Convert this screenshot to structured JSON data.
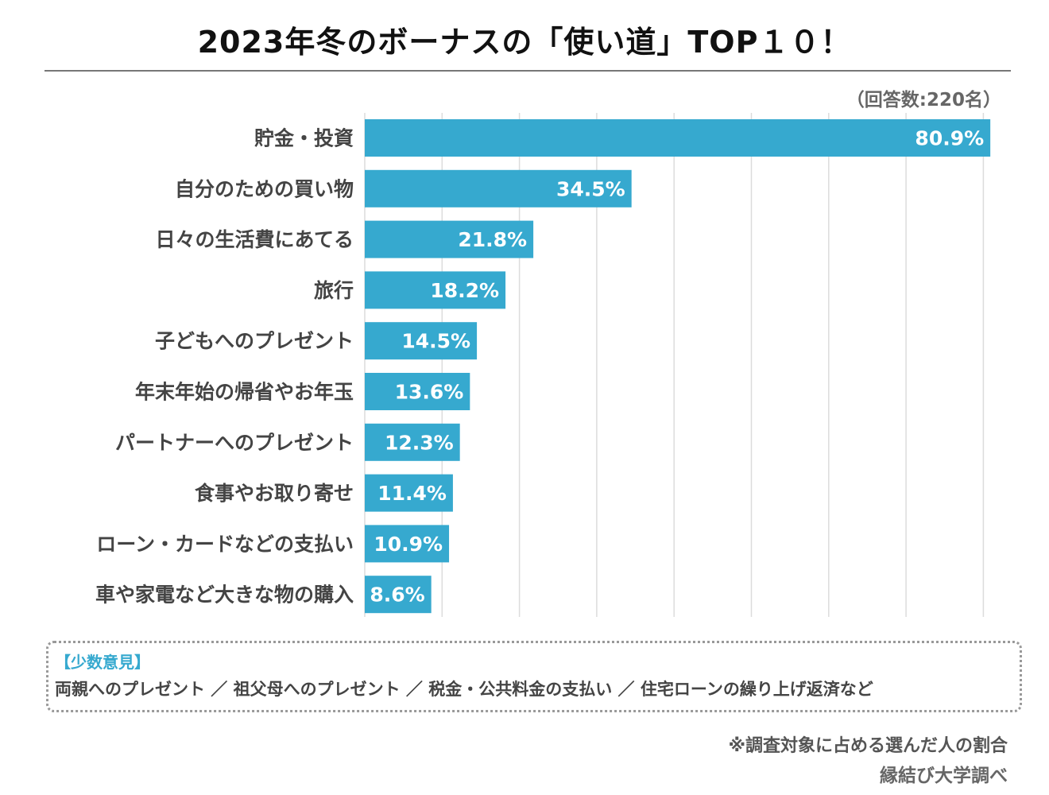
{
  "chart_data": {
    "type": "bar",
    "orientation": "horizontal",
    "title": "2023年冬のボーナスの「使い道」TOP１０！",
    "subtitle": "（回答数:220名）",
    "categories": [
      "貯金・投資",
      "自分のための買い物",
      "日々の生活費にあてる",
      "旅行",
      "子どもへのプレゼント",
      "年末年始の帰省やお年玉",
      "パートナーへのプレゼント",
      "食事やお取り寄せ",
      "ローン・カードなどの支払い",
      "車や家電など大きな物の購入"
    ],
    "values": [
      80.9,
      34.5,
      21.8,
      18.2,
      14.5,
      13.6,
      12.3,
      11.4,
      10.9,
      8.6
    ],
    "data_labels": [
      "80.9%",
      "34.5%",
      "21.8%",
      "18.2%",
      "14.5%",
      "13.6%",
      "12.3%",
      "11.4%",
      "10.9%",
      "8.6%"
    ],
    "xlim": [
      0,
      82
    ],
    "grid": true,
    "gridlines": [
      10,
      20,
      30,
      40,
      50,
      60,
      70,
      80
    ],
    "bar_color": "#36a9cf"
  },
  "minority": {
    "heading": "【少数意見】",
    "text": "両親へのプレゼント ／ 祖父母へのプレゼント ／ 税金・公共料金の支払い ／ 住宅ローンの繰り上げ返済など"
  },
  "footnote": "※調査対象に占める選んだ人の割合",
  "source": "縁結び大学調べ"
}
